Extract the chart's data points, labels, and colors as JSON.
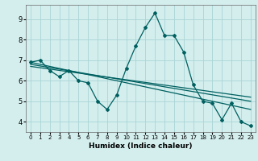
{
  "xlabel": "Humidex (Indice chaleur)",
  "bg_color": "#d4eeee",
  "grid_color": "#aad4d4",
  "line_color": "#006060",
  "xlim": [
    -0.5,
    23.5
  ],
  "ylim": [
    3.5,
    9.7
  ],
  "yticks": [
    4,
    5,
    6,
    7,
    8,
    9
  ],
  "xticks": [
    0,
    1,
    2,
    3,
    4,
    5,
    6,
    7,
    8,
    9,
    10,
    11,
    12,
    13,
    14,
    15,
    16,
    17,
    18,
    19,
    20,
    21,
    22,
    23
  ],
  "series1": [
    6.9,
    7.0,
    6.5,
    6.2,
    6.5,
    6.0,
    5.9,
    5.0,
    4.6,
    5.3,
    6.6,
    7.7,
    8.6,
    9.3,
    8.2,
    8.2,
    7.4,
    5.8,
    5.0,
    4.9,
    4.1,
    4.9,
    4.0,
    3.8
  ],
  "series2_x": [
    0,
    23
  ],
  "series2_y": [
    6.9,
    4.6
  ],
  "series3_x": [
    0,
    23
  ],
  "series3_y": [
    6.8,
    5.0
  ],
  "series4_x": [
    0,
    23
  ],
  "series4_y": [
    6.7,
    5.2
  ]
}
